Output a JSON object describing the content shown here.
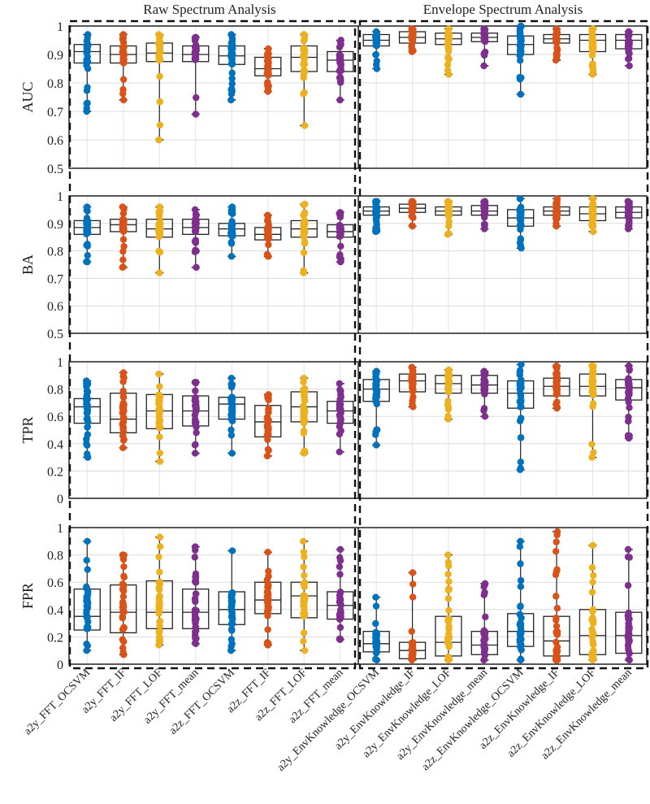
{
  "chart_data": {
    "type": "box",
    "section_titles": [
      "Raw Spectrum Analysis",
      "Envelope Spectrum Analysis"
    ],
    "categories": [
      "a2y_FFT_OCSVM",
      "a2y_FFT_IF",
      "a2y_FFT_LOF",
      "a2y_FFT_mean",
      "a2z_FFT_OCSVM",
      "a2z_FFT_IF",
      "a2z_FFT_LOF",
      "a2z_FFT_mean",
      "a2y_EnvKnowledge_OCSVM",
      "a2y_EnvKnowledge_IF",
      "a2y_EnvKnowledge_LOF",
      "a2y_EnvKnowledge_mean",
      "a2z_EnvKnowledge_OCSVM",
      "a2z_EnvKnowledge_IF",
      "a2z_EnvKnowledge_LOF",
      "a2z_EnvKnowledge_mean"
    ],
    "series_colors": [
      "#0072BD",
      "#D95319",
      "#EDB120",
      "#7E2F8E"
    ],
    "grid": true,
    "panels": [
      {
        "ylabel": "AUC",
        "ylim": [
          0.5,
          1
        ],
        "yticks": [
          "0.5",
          "0.6",
          "0.7",
          "0.8",
          "0.9",
          "1"
        ],
        "boxes": [
          {
            "q1": 0.87,
            "median": 0.91,
            "q3": 0.935,
            "min": 0.7,
            "max": 0.97
          },
          {
            "q1": 0.87,
            "median": 0.9,
            "q3": 0.93,
            "min": 0.74,
            "max": 0.97
          },
          {
            "q1": 0.875,
            "median": 0.905,
            "q3": 0.94,
            "min": 0.6,
            "max": 0.97
          },
          {
            "q1": 0.875,
            "median": 0.9,
            "q3": 0.93,
            "min": 0.69,
            "max": 0.96
          },
          {
            "q1": 0.865,
            "median": 0.895,
            "q3": 0.93,
            "min": 0.74,
            "max": 0.97
          },
          {
            "q1": 0.825,
            "median": 0.85,
            "q3": 0.89,
            "min": 0.77,
            "max": 0.92
          },
          {
            "q1": 0.84,
            "median": 0.89,
            "q3": 0.93,
            "min": 0.65,
            "max": 0.97
          },
          {
            "q1": 0.84,
            "median": 0.88,
            "q3": 0.91,
            "min": 0.74,
            "max": 0.95
          },
          {
            "q1": 0.93,
            "median": 0.95,
            "q3": 0.97,
            "min": 0.85,
            "max": 0.98
          },
          {
            "q1": 0.94,
            "median": 0.96,
            "q3": 0.98,
            "min": 0.91,
            "max": 0.99
          },
          {
            "q1": 0.935,
            "median": 0.955,
            "q3": 0.975,
            "min": 0.83,
            "max": 0.99
          },
          {
            "q1": 0.945,
            "median": 0.96,
            "q3": 0.975,
            "min": 0.86,
            "max": 0.99
          },
          {
            "q1": 0.9,
            "median": 0.935,
            "q3": 0.965,
            "min": 0.76,
            "max": 1.0
          },
          {
            "q1": 0.94,
            "median": 0.955,
            "q3": 0.97,
            "min": 0.88,
            "max": 0.99
          },
          {
            "q1": 0.91,
            "median": 0.95,
            "q3": 0.97,
            "min": 0.83,
            "max": 0.99
          },
          {
            "q1": 0.92,
            "median": 0.95,
            "q3": 0.97,
            "min": 0.86,
            "max": 0.98
          }
        ]
      },
      {
        "ylabel": "BA",
        "ylim": [
          0.5,
          1
        ],
        "yticks": [
          "0.5",
          "0.6",
          "0.7",
          "0.8",
          "0.9",
          "1"
        ],
        "boxes": [
          {
            "q1": 0.86,
            "median": 0.885,
            "q3": 0.91,
            "min": 0.76,
            "max": 0.96
          },
          {
            "q1": 0.87,
            "median": 0.895,
            "q3": 0.915,
            "min": 0.74,
            "max": 0.96
          },
          {
            "q1": 0.85,
            "median": 0.88,
            "q3": 0.915,
            "min": 0.72,
            "max": 0.96
          },
          {
            "q1": 0.86,
            "median": 0.885,
            "q3": 0.915,
            "min": 0.74,
            "max": 0.95
          },
          {
            "q1": 0.855,
            "median": 0.88,
            "q3": 0.9,
            "min": 0.78,
            "max": 0.96
          },
          {
            "q1": 0.84,
            "median": 0.86,
            "q3": 0.885,
            "min": 0.78,
            "max": 0.93
          },
          {
            "q1": 0.85,
            "median": 0.88,
            "q3": 0.91,
            "min": 0.72,
            "max": 0.97
          },
          {
            "q1": 0.85,
            "median": 0.87,
            "q3": 0.895,
            "min": 0.76,
            "max": 0.94
          },
          {
            "q1": 0.93,
            "median": 0.945,
            "q3": 0.96,
            "min": 0.87,
            "max": 0.98
          },
          {
            "q1": 0.94,
            "median": 0.955,
            "q3": 0.97,
            "min": 0.89,
            "max": 0.98
          },
          {
            "q1": 0.93,
            "median": 0.945,
            "q3": 0.96,
            "min": 0.86,
            "max": 0.98
          },
          {
            "q1": 0.93,
            "median": 0.945,
            "q3": 0.965,
            "min": 0.88,
            "max": 0.98
          },
          {
            "q1": 0.89,
            "median": 0.92,
            "q3": 0.95,
            "min": 0.81,
            "max": 0.99
          },
          {
            "q1": 0.93,
            "median": 0.945,
            "q3": 0.96,
            "min": 0.89,
            "max": 0.99
          },
          {
            "q1": 0.91,
            "median": 0.935,
            "q3": 0.96,
            "min": 0.87,
            "max": 0.99
          },
          {
            "q1": 0.92,
            "median": 0.94,
            "q3": 0.96,
            "min": 0.88,
            "max": 0.98
          }
        ]
      },
      {
        "ylabel": "TPR",
        "ylim": [
          0,
          1
        ],
        "yticks": [
          "0",
          "0.2",
          "0.4",
          "0.6",
          "0.8",
          "1"
        ],
        "boxes": [
          {
            "q1": 0.55,
            "median": 0.67,
            "q3": 0.73,
            "min": 0.3,
            "max": 0.86
          },
          {
            "q1": 0.48,
            "median": 0.58,
            "q3": 0.77,
            "min": 0.37,
            "max": 0.92
          },
          {
            "q1": 0.51,
            "median": 0.64,
            "q3": 0.76,
            "min": 0.27,
            "max": 0.91
          },
          {
            "q1": 0.53,
            "median": 0.64,
            "q3": 0.75,
            "min": 0.33,
            "max": 0.85
          },
          {
            "q1": 0.58,
            "median": 0.69,
            "q3": 0.74,
            "min": 0.33,
            "max": 0.88
          },
          {
            "q1": 0.45,
            "median": 0.56,
            "q3": 0.68,
            "min": 0.31,
            "max": 0.76
          },
          {
            "q1": 0.56,
            "median": 0.67,
            "q3": 0.78,
            "min": 0.33,
            "max": 0.88
          },
          {
            "q1": 0.55,
            "median": 0.64,
            "q3": 0.71,
            "min": 0.34,
            "max": 0.84
          },
          {
            "q1": 0.71,
            "median": 0.8,
            "q3": 0.87,
            "min": 0.39,
            "max": 0.93
          },
          {
            "q1": 0.78,
            "median": 0.86,
            "q3": 0.91,
            "min": 0.67,
            "max": 0.96
          },
          {
            "q1": 0.77,
            "median": 0.84,
            "q3": 0.9,
            "min": 0.58,
            "max": 0.94
          },
          {
            "q1": 0.77,
            "median": 0.83,
            "q3": 0.9,
            "min": 0.6,
            "max": 0.93
          },
          {
            "q1": 0.66,
            "median": 0.77,
            "q3": 0.86,
            "min": 0.21,
            "max": 0.98
          },
          {
            "q1": 0.75,
            "median": 0.82,
            "q3": 0.88,
            "min": 0.66,
            "max": 0.97
          },
          {
            "q1": 0.75,
            "median": 0.82,
            "q3": 0.91,
            "min": 0.3,
            "max": 0.97
          },
          {
            "q1": 0.72,
            "median": 0.81,
            "q3": 0.87,
            "min": 0.44,
            "max": 0.97
          }
        ]
      },
      {
        "ylabel": "FPR",
        "ylim": [
          0,
          1
        ],
        "yticks": [
          "0",
          "0.2",
          "0.4",
          "0.6",
          "0.8",
          "1"
        ],
        "boxes": [
          {
            "q1": 0.25,
            "median": 0.35,
            "q3": 0.55,
            "min": 0.1,
            "max": 0.9
          },
          {
            "q1": 0.23,
            "median": 0.38,
            "q3": 0.58,
            "min": 0.07,
            "max": 0.8
          },
          {
            "q1": 0.26,
            "median": 0.38,
            "q3": 0.61,
            "min": 0.14,
            "max": 0.93
          },
          {
            "q1": 0.26,
            "median": 0.38,
            "q3": 0.55,
            "min": 0.15,
            "max": 0.86
          },
          {
            "q1": 0.29,
            "median": 0.4,
            "q3": 0.53,
            "min": 0.1,
            "max": 0.83
          },
          {
            "q1": 0.37,
            "median": 0.47,
            "q3": 0.6,
            "min": 0.14,
            "max": 0.82
          },
          {
            "q1": 0.34,
            "median": 0.5,
            "q3": 0.6,
            "min": 0.1,
            "max": 0.9
          },
          {
            "q1": 0.33,
            "median": 0.43,
            "q3": 0.53,
            "min": 0.18,
            "max": 0.84
          },
          {
            "q1": 0.09,
            "median": 0.15,
            "q3": 0.24,
            "min": 0.03,
            "max": 0.49
          },
          {
            "q1": 0.04,
            "median": 0.1,
            "q3": 0.16,
            "min": 0.03,
            "max": 0.67
          },
          {
            "q1": 0.06,
            "median": 0.16,
            "q3": 0.35,
            "min": 0.03,
            "max": 0.8
          },
          {
            "q1": 0.07,
            "median": 0.14,
            "q3": 0.24,
            "min": 0.03,
            "max": 0.59
          },
          {
            "q1": 0.13,
            "median": 0.24,
            "q3": 0.37,
            "min": 0.03,
            "max": 0.9
          },
          {
            "q1": 0.06,
            "median": 0.17,
            "q3": 0.35,
            "min": 0.03,
            "max": 0.97
          },
          {
            "q1": 0.07,
            "median": 0.21,
            "q3": 0.4,
            "min": 0.03,
            "max": 0.87
          },
          {
            "q1": 0.08,
            "median": 0.21,
            "q3": 0.38,
            "min": 0.03,
            "max": 0.84
          }
        ]
      }
    ]
  }
}
